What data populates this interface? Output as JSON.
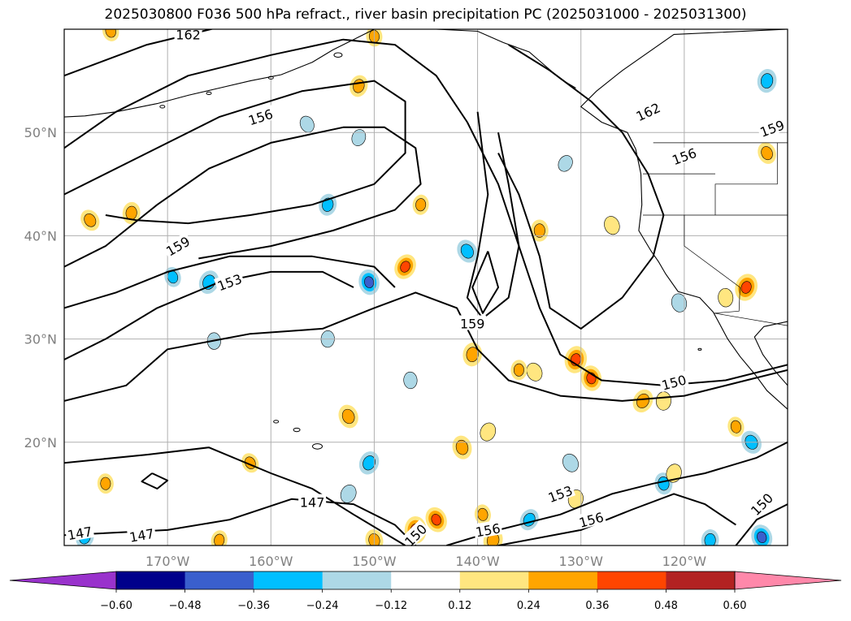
{
  "title": "2025030800 F036 500 hPa refract., river basin precipitation PC (2025031000 - 2025031300)",
  "colors": {
    "background": "#ffffff",
    "grid": "#b0b0b0",
    "coast": "#000000",
    "contour": "#000000"
  },
  "map": {
    "projection": "PlateCarree",
    "lon_range": [
      -180,
      -110
    ],
    "lat_range": [
      10,
      60
    ],
    "lat_ticks": [
      {
        "value": 50,
        "label": "50°N"
      },
      {
        "value": 40,
        "label": "40°N"
      },
      {
        "value": 30,
        "label": "30°N"
      },
      {
        "value": 20,
        "label": "20°N"
      }
    ],
    "lon_ticks": [
      {
        "value": -170,
        "label": "170°W"
      },
      {
        "value": -160,
        "label": "160°W"
      },
      {
        "value": -150,
        "label": "150°W"
      },
      {
        "value": -140,
        "label": "140°W"
      },
      {
        "value": -130,
        "label": "130°W"
      },
      {
        "value": -120,
        "label": "120°W"
      }
    ],
    "contour_labels": [
      {
        "text": "162",
        "lon": -168.0,
        "lat": 59.5,
        "rot": 0
      },
      {
        "text": "156",
        "lon": -161.0,
        "lat": 51.5,
        "rot": -18
      },
      {
        "text": "159",
        "lon": -169.0,
        "lat": 39.0,
        "rot": -30
      },
      {
        "text": "153",
        "lon": -164.0,
        "lat": 35.5,
        "rot": -20
      },
      {
        "text": "159",
        "lon": -140.5,
        "lat": 31.5,
        "rot": 0
      },
      {
        "text": "162",
        "lon": -123.5,
        "lat": 52.0,
        "rot": -25
      },
      {
        "text": "156",
        "lon": -120.0,
        "lat": 47.7,
        "rot": -20
      },
      {
        "text": "159",
        "lon": -111.5,
        "lat": 50.4,
        "rot": -20
      },
      {
        "text": "150",
        "lon": -121.0,
        "lat": 25.8,
        "rot": -15
      },
      {
        "text": "147",
        "lon": -156.0,
        "lat": 14.2,
        "rot": 0
      },
      {
        "text": "147",
        "lon": -178.5,
        "lat": 11.2,
        "rot": -10
      },
      {
        "text": "147",
        "lon": -172.5,
        "lat": 11.0,
        "rot": -10
      },
      {
        "text": "153",
        "lon": -132.0,
        "lat": 15.0,
        "rot": -20
      },
      {
        "text": "156",
        "lon": -129.0,
        "lat": 12.5,
        "rot": -15
      },
      {
        "text": "156",
        "lon": -139.0,
        "lat": 11.5,
        "rot": -10
      },
      {
        "text": "150",
        "lon": -146.0,
        "lat": 11.0,
        "rot": -45
      },
      {
        "text": "150",
        "lon": -112.5,
        "lat": 14.0,
        "rot": -45
      }
    ],
    "precip_blobs": [
      {
        "lon": -177.5,
        "lat": 41.5,
        "value": 0.3
      },
      {
        "lon": -173.5,
        "lat": 42.2,
        "value": 0.3
      },
      {
        "lon": -169.5,
        "lat": 36.0,
        "value": -0.25
      },
      {
        "lon": -166.0,
        "lat": 35.5,
        "value": -0.35
      },
      {
        "lon": -165.5,
        "lat": 29.8,
        "value": -0.15
      },
      {
        "lon": -156.5,
        "lat": 50.8,
        "value": -0.15
      },
      {
        "lon": -154.5,
        "lat": 43.0,
        "value": -0.3
      },
      {
        "lon": -150.5,
        "lat": 35.5,
        "value": -0.4
      },
      {
        "lon": -147.0,
        "lat": 37.0,
        "value": 0.4
      },
      {
        "lon": -154.5,
        "lat": 30.0,
        "value": -0.15
      },
      {
        "lon": -152.5,
        "lat": 22.5,
        "value": 0.35
      },
      {
        "lon": -151.5,
        "lat": 54.5,
        "value": 0.3
      },
      {
        "lon": -150.0,
        "lat": 59.3,
        "value": 0.25
      },
      {
        "lon": -141.0,
        "lat": 38.5,
        "value": -0.35
      },
      {
        "lon": -140.5,
        "lat": 28.5,
        "value": 0.35
      },
      {
        "lon": -141.5,
        "lat": 19.5,
        "value": 0.35
      },
      {
        "lon": -139.0,
        "lat": 21.0,
        "value": 0.2
      },
      {
        "lon": -134.0,
        "lat": 40.5,
        "value": 0.3
      },
      {
        "lon": -134.5,
        "lat": 26.8,
        "value": 0.2
      },
      {
        "lon": -130.5,
        "lat": 28.0,
        "value": 0.45
      },
      {
        "lon": -129.0,
        "lat": 26.2,
        "value": 0.4
      },
      {
        "lon": -124.0,
        "lat": 24.0,
        "value": 0.35
      },
      {
        "lon": -122.0,
        "lat": 24.0,
        "value": 0.2
      },
      {
        "lon": -127.0,
        "lat": 41.0,
        "value": 0.2
      },
      {
        "lon": -114.0,
        "lat": 35.0,
        "value": 0.45
      },
      {
        "lon": -116.0,
        "lat": 34.0,
        "value": 0.2
      },
      {
        "lon": -113.5,
        "lat": 20.0,
        "value": -0.35
      },
      {
        "lon": -112.0,
        "lat": 55.0,
        "value": -0.35
      },
      {
        "lon": -120.5,
        "lat": 33.5,
        "value": -0.2
      },
      {
        "lon": -150.5,
        "lat": 18.0,
        "value": -0.35
      },
      {
        "lon": -146.0,
        "lat": 11.5,
        "value": 0.45
      },
      {
        "lon": -144.0,
        "lat": 12.5,
        "value": 0.4
      },
      {
        "lon": -138.5,
        "lat": 10.5,
        "value": 0.35
      },
      {
        "lon": -122.0,
        "lat": 16.0,
        "value": -0.3
      },
      {
        "lon": -135.0,
        "lat": 12.5,
        "value": -0.3
      },
      {
        "lon": -117.5,
        "lat": 10.5,
        "value": -0.3
      },
      {
        "lon": -112.5,
        "lat": 10.8,
        "value": -0.4
      },
      {
        "lon": -178.0,
        "lat": 10.8,
        "value": -0.3
      },
      {
        "lon": -176.0,
        "lat": 16.0,
        "value": 0.25
      },
      {
        "lon": -162.0,
        "lat": 18.0,
        "value": 0.25
      },
      {
        "lon": -165.0,
        "lat": 10.5,
        "value": 0.25
      },
      {
        "lon": -150.0,
        "lat": 10.5,
        "value": 0.3
      },
      {
        "lon": -152.5,
        "lat": 15.0,
        "value": -0.2
      },
      {
        "lon": -136.0,
        "lat": 27.0,
        "value": 0.25
      },
      {
        "lon": -112.0,
        "lat": 48.0,
        "value": 0.3
      },
      {
        "lon": -121.0,
        "lat": 17.0,
        "value": 0.2
      },
      {
        "lon": -139.5,
        "lat": 13.0,
        "value": 0.25
      },
      {
        "lon": -131.5,
        "lat": 47.0,
        "value": -0.15
      },
      {
        "lon": -145.5,
        "lat": 43.0,
        "value": 0.25
      },
      {
        "lon": -175.5,
        "lat": 59.8,
        "value": 0.25
      },
      {
        "lon": -151.5,
        "lat": 49.5,
        "value": -0.15
      },
      {
        "lon": -146.5,
        "lat": 26.0,
        "value": -0.15
      },
      {
        "lon": -131.0,
        "lat": 18.0,
        "value": -0.2
      },
      {
        "lon": -130.5,
        "lat": 14.5,
        "value": 0.2
      },
      {
        "lon": -115.0,
        "lat": 21.5,
        "value": 0.25
      }
    ]
  },
  "colorbar": {
    "ticks": [
      "−0.60",
      "−0.48",
      "−0.36",
      "−0.24",
      "−0.12",
      "0.12",
      "0.24",
      "0.36",
      "0.48",
      "0.60"
    ],
    "levels": [
      -0.6,
      -0.48,
      -0.36,
      -0.24,
      -0.12,
      0.12,
      0.24,
      0.36,
      0.48,
      0.6
    ],
    "colors": [
      "#9932cc",
      "#00008b",
      "#3a5fcd",
      "#00bfff",
      "#add8e6",
      "#ffffff",
      "#ffe680",
      "#ffa500",
      "#ff4500",
      "#b22222",
      "#ff88aa"
    ]
  }
}
